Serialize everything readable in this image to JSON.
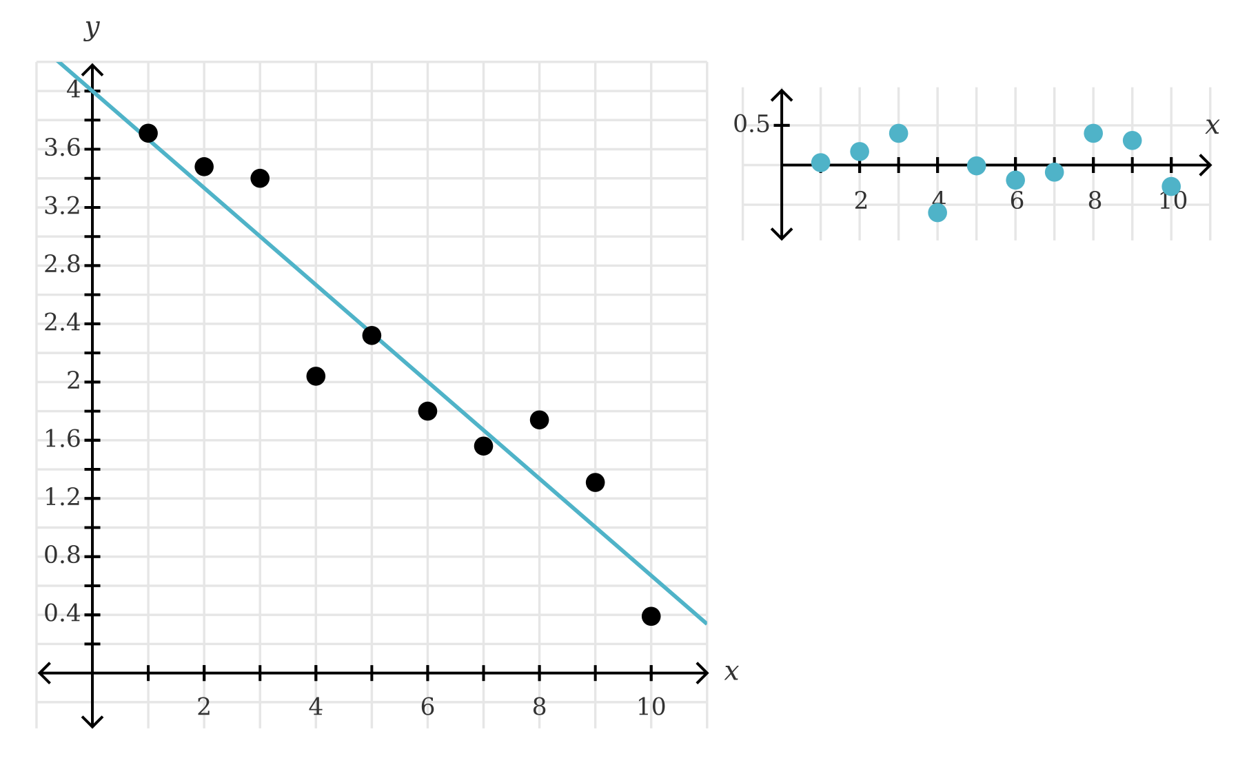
{
  "chart_data": [
    {
      "type": "scatter",
      "x_label": "x",
      "y_label": "y",
      "x": [
        1,
        2,
        3,
        4,
        5,
        6,
        7,
        8,
        9,
        10
      ],
      "series": [
        {
          "color": "#000000",
          "values": [
            3.71,
            3.48,
            3.4,
            2.04,
            2.32,
            1.8,
            1.56,
            1.74,
            1.31,
            0.39
          ]
        }
      ],
      "trend_line": {
        "slope": -0.333,
        "intercept": 4.0,
        "color": "#4fb3c8"
      },
      "xlim": [
        -1,
        11
      ],
      "ylim": [
        -0.38,
        4.2
      ],
      "xticks": [
        2,
        4,
        6,
        8,
        10
      ],
      "yticks": [
        0.4,
        0.8,
        1.2,
        1.6,
        2,
        2.4,
        2.8,
        3.2,
        3.6,
        4
      ],
      "grid": true,
      "grid_step": [
        1,
        0.2
      ]
    },
    {
      "type": "scatter",
      "x_label": "x",
      "x": [
        1,
        2,
        3,
        4,
        5,
        6,
        7,
        8,
        9,
        10
      ],
      "series": [
        {
          "color": "#4fb3c8",
          "values": [
            0.03,
            0.17,
            0.4,
            -0.6,
            -0.01,
            -0.19,
            -0.09,
            0.4,
            0.31,
            -0.27
          ]
        }
      ],
      "xlim": [
        -1,
        11
      ],
      "ylim": [
        -0.95,
        0.98
      ],
      "xticks": [
        2,
        4,
        6,
        8,
        10
      ],
      "yticks": [
        0.5
      ],
      "grid": true,
      "grid_step": [
        1,
        0.5
      ]
    }
  ]
}
